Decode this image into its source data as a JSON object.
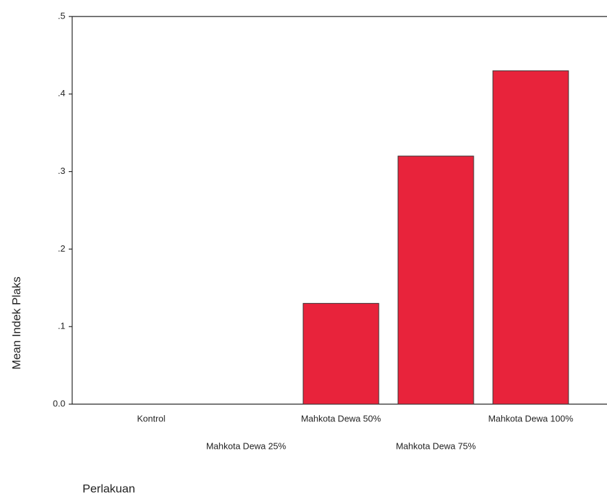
{
  "chart_data": {
    "type": "bar",
    "categories": [
      "Kontrol",
      "Mahkota Dewa 25%",
      "Mahkota Dewa 50%",
      "Mahkota Dewa 75%",
      "Mahkota Dewa 100%"
    ],
    "values": [
      0,
      0,
      0.13,
      0.32,
      0.43
    ],
    "color": "#e8233b",
    "ylim": [
      0,
      0.5
    ],
    "yticks": [
      {
        "value": 0,
        "label": "0.0"
      },
      {
        "value": 0.1,
        "label": ".1"
      },
      {
        "value": 0.2,
        "label": ".2"
      },
      {
        "value": 0.3,
        "label": ".3"
      },
      {
        "value": 0.4,
        "label": ".4"
      },
      {
        "value": 0.5,
        "label": ".5"
      }
    ],
    "ylabel": "Mean Indek Plaks",
    "xlabel": "Perlakuan"
  }
}
